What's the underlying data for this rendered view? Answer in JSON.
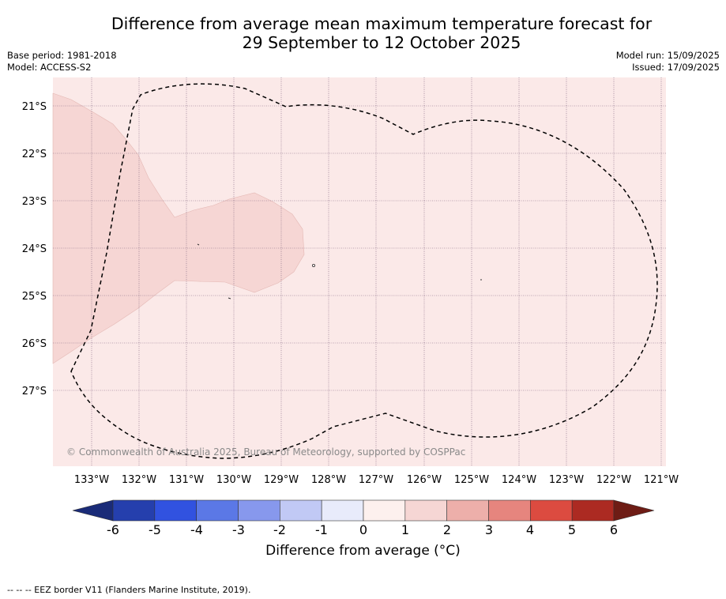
{
  "header": {
    "title_line1": "Difference from average mean maximum temperature forecast for",
    "title_line2": "29 September to 12 October 2025",
    "base_period": "Base period: 1981-2018",
    "model": "Model: ACCESS-S2",
    "model_run": "Model run: 15/09/2025",
    "issued": "Issued: 17/09/2025"
  },
  "map": {
    "lon_labels": [
      "133°W",
      "132°W",
      "131°W",
      "130°W",
      "129°W",
      "128°W",
      "127°W",
      "126°W",
      "125°W",
      "124°W",
      "123°W",
      "122°W",
      "121°W"
    ],
    "lat_labels": [
      "21°S",
      "22°S",
      "23°S",
      "24°S",
      "25°S",
      "26°S",
      "27°S"
    ],
    "copyright": "© Commonwealth of Australia 2025, Bureau of Meteorology, supported by COSPPac",
    "colors": {
      "background_anomaly_0_1": "#fbe9e8",
      "anomaly_1_2": "#f6d6d4",
      "gridline": "#7a5c7a",
      "eez_border": "#000000"
    },
    "anomaly_regions": [
      {
        "range_c": "1 to 2",
        "description_color": "#f6d6d4"
      }
    ]
  },
  "colorbar": {
    "ticks": [
      "-6",
      "-5",
      "-4",
      "-3",
      "-2",
      "-1",
      "0",
      "1",
      "2",
      "3",
      "4",
      "5",
      "6"
    ],
    "colors": [
      "#253fad",
      "#3152e0",
      "#5b78e6",
      "#8798ed",
      "#c1c9f5",
      "#e8ebfb",
      "#fdf0ee",
      "#f6d6d4",
      "#edafaa",
      "#e6857e",
      "#dc4b40",
      "#ac2a22"
    ],
    "under_color": "#1a2b78",
    "over_color": "#6e1c15",
    "label": "Difference from average (°C)"
  },
  "footer": {
    "note": "--  --  -- EEZ border V11 (Flanders Marine Institute, 2019)."
  }
}
